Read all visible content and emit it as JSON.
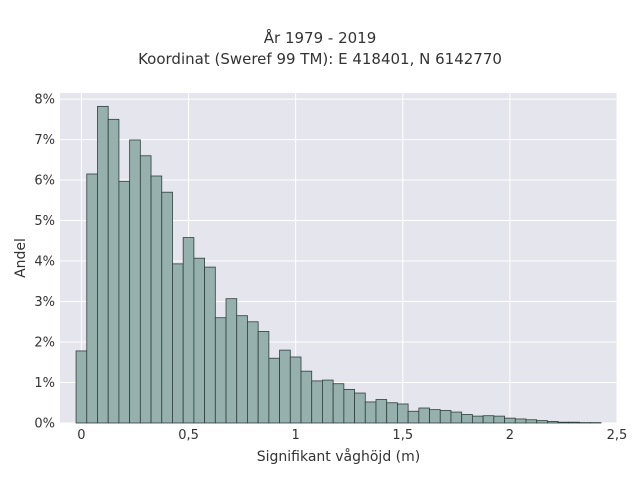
{
  "chart_data": {
    "type": "bar",
    "title": "År 1979 - 2019",
    "subtitle": "Koordinat (Sweref 99 TM): E 418401, N 6142770",
    "xlabel": "Signifikant våghöjd (m)",
    "ylabel": "Andel",
    "xlim": [
      -0.1,
      2.5
    ],
    "ylim": [
      0,
      0.0815
    ],
    "x_ticks": [
      0,
      0.5,
      1,
      1.5,
      2,
      2.5
    ],
    "x_tick_labels": [
      "0",
      "0,5",
      "1",
      "1,5",
      "2",
      "2,5"
    ],
    "y_ticks": [
      0,
      0.01,
      0.02,
      0.03,
      0.04,
      0.05,
      0.06,
      0.07,
      0.08
    ],
    "y_tick_labels": [
      "0%",
      "1%",
      "2%",
      "3%",
      "4%",
      "5%",
      "6%",
      "7%",
      "8%"
    ],
    "grid": true,
    "bin_start": -0.025,
    "bin_width": 0.05,
    "bar_color": "#95b0ad",
    "bar_edge_color": "#2f3f3d",
    "background_color": "#e5e5ee",
    "values": [
      0.0178,
      0.0615,
      0.0782,
      0.075,
      0.0597,
      0.0699,
      0.066,
      0.061,
      0.057,
      0.0393,
      0.0458,
      0.0407,
      0.0385,
      0.026,
      0.0307,
      0.0265,
      0.025,
      0.0226,
      0.016,
      0.018,
      0.0163,
      0.0128,
      0.0104,
      0.0106,
      0.0097,
      0.0083,
      0.0074,
      0.0052,
      0.0058,
      0.005,
      0.0047,
      0.0029,
      0.0037,
      0.0033,
      0.0031,
      0.0027,
      0.0021,
      0.0017,
      0.0018,
      0.0017,
      0.0012,
      0.001,
      0.0008,
      0.0006,
      0.0004,
      0.0002,
      0.0002,
      0.0001,
      0.0001
    ]
  }
}
